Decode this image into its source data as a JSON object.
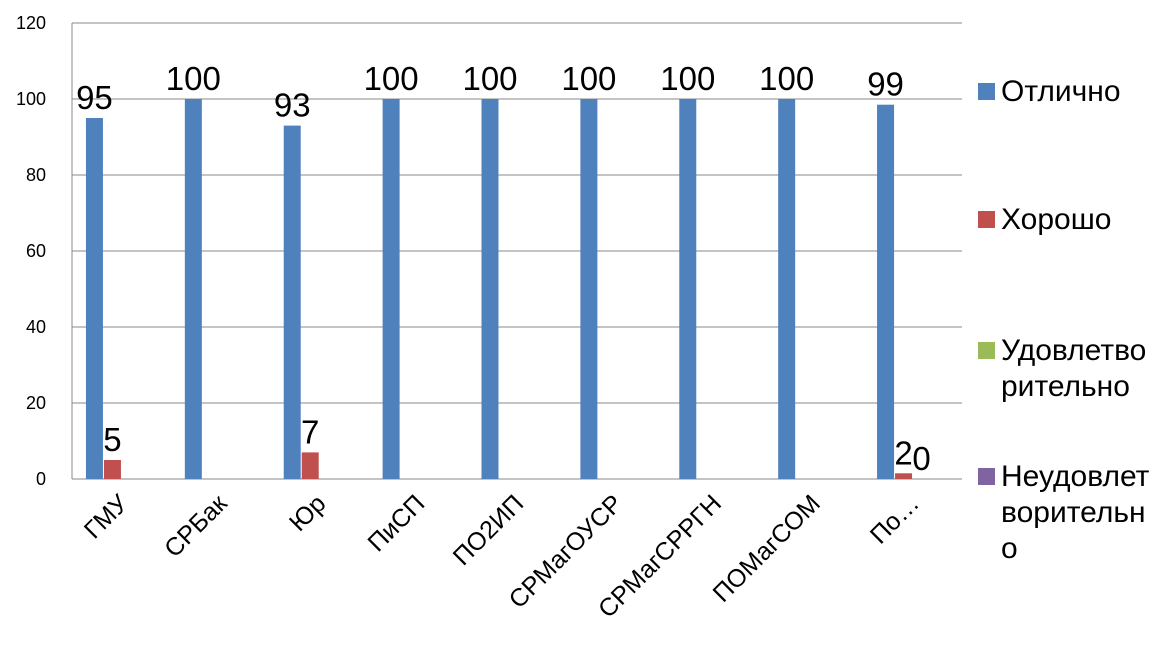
{
  "chart_data": {
    "type": "bar",
    "categories": [
      "ГМУ",
      "СРБак",
      "Юр",
      "ПиСП",
      "ПО2ИП",
      "СРМагОУСР",
      "СРМагСРРГН",
      "ПОМагСОМ",
      "По…"
    ],
    "series": [
      {
        "name": "Отлично",
        "color": "#4F81BD",
        "values": [
          95,
          100,
          93,
          100,
          100,
          100,
          100,
          100,
          98.5
        ],
        "labels": [
          "95",
          "100",
          "93",
          "100",
          "100",
          "100",
          "100",
          "100",
          "99"
        ]
      },
      {
        "name": "Хорошо",
        "color": "#C0504D",
        "values": [
          5,
          0,
          7,
          0,
          0,
          0,
          0,
          0,
          1.5
        ],
        "labels": [
          "5",
          "",
          "7",
          "",
          "",
          "",
          "",
          "",
          "2"
        ]
      },
      {
        "name": "Удовлетворительно",
        "color": "#9BBB59",
        "values": [
          0,
          0,
          0,
          0,
          0,
          0,
          0,
          0,
          0
        ],
        "labels": [
          "",
          "",
          "",
          "",
          "",
          "",
          "",
          "",
          "0"
        ]
      },
      {
        "name": "Неудовлетворительно",
        "color": "#8064A2",
        "values": [
          0,
          0,
          0,
          0,
          0,
          0,
          0,
          0,
          0
        ],
        "labels": [
          "",
          "",
          "",
          "",
          "",
          "",
          "",
          "",
          ""
        ]
      }
    ],
    "y_ticks": [
      "0",
      "20",
      "40",
      "60",
      "80",
      "100",
      "120"
    ],
    "ylim": [
      0,
      120
    ],
    "grid": true,
    "legend_position": "right"
  },
  "legend": {
    "items": [
      {
        "label": "Отлично",
        "color": "#4F81BD"
      },
      {
        "label": "Хорошо",
        "color": "#C0504D"
      },
      {
        "label": "Удовлетворительно",
        "color": "#9BBB59"
      },
      {
        "label": "Неудовлетворительно",
        "color": "#8064A2"
      }
    ]
  }
}
